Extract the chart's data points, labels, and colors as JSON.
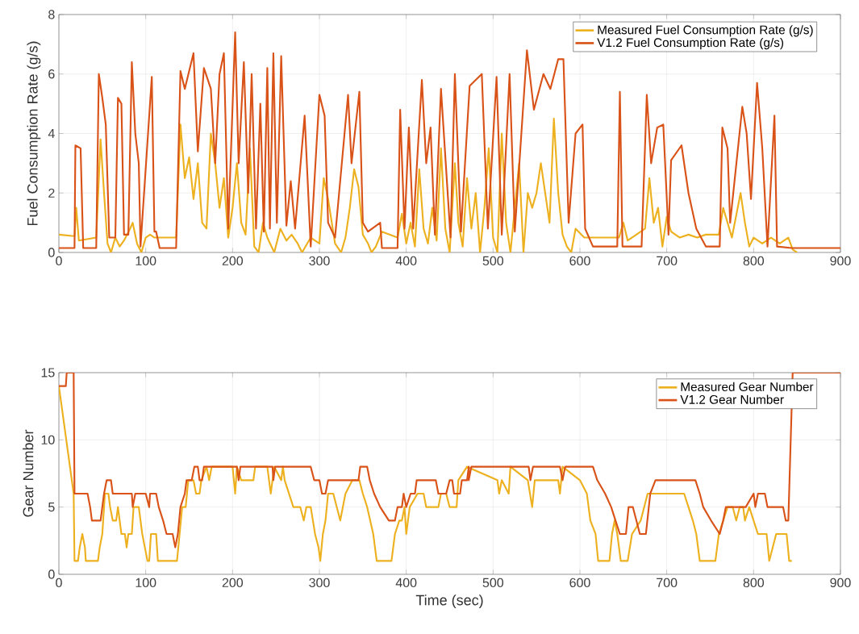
{
  "chart_data": [
    {
      "type": "line",
      "ylabel": "Fuel Consumption Rate (g/s)",
      "xlim": [
        0,
        900
      ],
      "xticks": [
        0,
        100,
        200,
        300,
        400,
        500,
        600,
        700,
        800,
        900
      ],
      "ylim": [
        0,
        8
      ],
      "yticks": [
        0,
        2,
        4,
        6,
        8
      ],
      "grid": true,
      "legend": "top right",
      "series": [
        {
          "name": "Measured Fuel Consumption Rate (g/s)",
          "color": "#edb120",
          "x": [
            0,
            18,
            20,
            23,
            43,
            48,
            52,
            56,
            60,
            65,
            70,
            75,
            82,
            85,
            90,
            95,
            100,
            105,
            110,
            135,
            140,
            145,
            150,
            155,
            160,
            165,
            170,
            175,
            180,
            185,
            190,
            195,
            200,
            205,
            210,
            215,
            220,
            225,
            230,
            235,
            240,
            248,
            255,
            262,
            268,
            275,
            280,
            290,
            300,
            305,
            310,
            318,
            325,
            330,
            335,
            340,
            345,
            350,
            356,
            360,
            365,
            372,
            390,
            395,
            400,
            405,
            410,
            415,
            420,
            425,
            430,
            435,
            440,
            445,
            450,
            456,
            460,
            465,
            470,
            475,
            480,
            485,
            490,
            495,
            500,
            505,
            510,
            515,
            520,
            525,
            530,
            535,
            540,
            545,
            550,
            555,
            560,
            565,
            570,
            575,
            580,
            585,
            590,
            595,
            605,
            645,
            650,
            655,
            665,
            675,
            680,
            685,
            690,
            695,
            700,
            705,
            715,
            725,
            735,
            745,
            760,
            765,
            770,
            775,
            785,
            790,
            795,
            800,
            810,
            820,
            830,
            840,
            845,
            850
          ],
          "values": [
            0.6,
            0.55,
            1.5,
            0.4,
            0.5,
            3.8,
            2.0,
            0.3,
            0.0,
            0.5,
            0.2,
            0.4,
            0.8,
            1.0,
            0.3,
            0.0,
            0.5,
            0.6,
            0.5,
            0.5,
            4.3,
            2.5,
            3.2,
            1.8,
            3.0,
            1.0,
            0.8,
            4.0,
            3.0,
            1.5,
            2.5,
            0.5,
            1.5,
            3.0,
            1.0,
            0.6,
            3.5,
            0.2,
            0.0,
            1.0,
            0.5,
            0.0,
            0.8,
            0.4,
            0.6,
            0.3,
            0.0,
            0.5,
            0.3,
            2.5,
            1.8,
            0.3,
            0.0,
            0.5,
            1.5,
            2.8,
            2.2,
            0.6,
            0.3,
            0.0,
            0.2,
            0.7,
            0.5,
            1.3,
            0.3,
            1.0,
            0.2,
            2.8,
            0.8,
            0.3,
            1.5,
            0.4,
            3.5,
            0.8,
            0.0,
            3.0,
            1.0,
            0.2,
            2.5,
            0.8,
            2.0,
            0.0,
            1.5,
            3.5,
            0.5,
            0.0,
            4.0,
            1.0,
            0.0,
            1.5,
            3.0,
            0.0,
            2.0,
            1.5,
            2.0,
            3.0,
            2.0,
            1.0,
            4.5,
            2.0,
            0.6,
            0.2,
            0.0,
            0.8,
            0.5,
            0.5,
            1.0,
            0.4,
            0.6,
            0.8,
            2.5,
            1.0,
            1.5,
            0.2,
            1.2,
            0.7,
            0.5,
            0.6,
            0.5,
            0.6,
            0.6,
            1.5,
            1.0,
            0.5,
            2.0,
            1.0,
            0.2,
            0.5,
            0.3,
            0.5,
            0.3,
            0.5,
            0.1,
            0.0
          ]
        },
        {
          "name": "V1.2 Fuel Consumption Rate (g/s)",
          "color": "#d95319",
          "x": [
            0,
            18,
            19,
            25,
            28,
            43,
            46,
            50,
            54,
            58,
            65,
            68,
            72,
            75,
            80,
            84,
            88,
            92,
            94,
            107,
            110,
            112,
            116,
            135,
            140,
            145,
            155,
            160,
            167,
            175,
            180,
            185,
            190,
            195,
            203,
            207,
            213,
            218,
            222,
            227,
            232,
            236,
            240,
            243,
            247,
            251,
            256,
            262,
            267,
            272,
            283,
            290,
            300,
            306,
            310,
            318,
            333,
            337,
            346,
            350,
            356,
            370,
            372,
            390,
            393,
            398,
            403,
            408,
            418,
            423,
            428,
            433,
            440,
            451,
            456,
            463,
            473,
            487,
            494,
            504,
            510,
            519,
            525,
            539,
            547,
            558,
            566,
            575,
            581,
            587,
            595,
            603,
            606,
            615,
            643,
            646,
            649,
            671,
            677,
            682,
            689,
            696,
            702,
            705,
            717,
            725,
            734,
            745,
            761,
            764,
            770,
            773,
            787,
            792,
            797,
            804,
            810,
            816,
            824,
            827,
            844,
            900
          ],
          "values": [
            0.15,
            0.15,
            3.6,
            3.5,
            0.15,
            0.15,
            6.0,
            5.2,
            4.3,
            0.5,
            0.5,
            5.2,
            5.0,
            0.6,
            0.6,
            6.4,
            4.0,
            3.0,
            0.2,
            5.9,
            0.7,
            0.7,
            0.15,
            0.15,
            6.1,
            5.5,
            6.7,
            3.4,
            6.2,
            5.5,
            3.0,
            6.0,
            6.7,
            0.8,
            7.4,
            3.0,
            6.4,
            2.0,
            6.0,
            0.8,
            5.0,
            0.7,
            6.2,
            0.8,
            6.7,
            1.0,
            6.6,
            0.9,
            2.4,
            0.8,
            4.6,
            0.2,
            5.3,
            4.6,
            1.0,
            0.5,
            5.3,
            3.0,
            5.4,
            1.0,
            0.7,
            1.0,
            0.15,
            0.15,
            4.8,
            0.8,
            4.2,
            0.8,
            5.8,
            3.0,
            4.2,
            0.6,
            5.5,
            0.5,
            6.0,
            0.7,
            5.6,
            6.0,
            0.8,
            5.9,
            0.6,
            6.0,
            0.7,
            6.8,
            4.8,
            6.0,
            5.5,
            6.5,
            6.5,
            1.0,
            4.0,
            4.3,
            0.8,
            0.2,
            0.2,
            5.4,
            0.2,
            0.2,
            5.3,
            3.0,
            4.2,
            4.3,
            0.6,
            3.1,
            3.6,
            2.0,
            0.8,
            0.2,
            0.2,
            4.2,
            3.5,
            1.0,
            4.9,
            4.0,
            1.8,
            5.7,
            3.5,
            0.2,
            4.6,
            0.2,
            0.15,
            0.15
          ]
        }
      ]
    },
    {
      "type": "line",
      "xlabel": "Time (sec)",
      "ylabel": "Gear Number",
      "xlim": [
        0,
        900
      ],
      "xticks": [
        0,
        100,
        200,
        300,
        400,
        500,
        600,
        700,
        800,
        900
      ],
      "ylim": [
        0,
        15
      ],
      "yticks": [
        0,
        5,
        10,
        15
      ],
      "grid": true,
      "legend": "top right",
      "series": [
        {
          "name": "Measured Gear Number",
          "color": "#edb120",
          "x": [
            0,
            17,
            18,
            22,
            24,
            27,
            30,
            31,
            45,
            47,
            50,
            51,
            53,
            57,
            59,
            62,
            66,
            68,
            70,
            72,
            76,
            78,
            80,
            84,
            86,
            92,
            96,
            99,
            102,
            104,
            106,
            112,
            114,
            136,
            139,
            142,
            146,
            149,
            155,
            158,
            162,
            164,
            170,
            173,
            176,
            200,
            203,
            205,
            210,
            224,
            226,
            240,
            244,
            248,
            256,
            258,
            260,
            265,
            270,
            278,
            282,
            285,
            290,
            295,
            299,
            301,
            304,
            307,
            310,
            316,
            320,
            324,
            327,
            330,
            338,
            346,
            350,
            355,
            362,
            366,
            383,
            387,
            392,
            395,
            398,
            400,
            404,
            413,
            420,
            423,
            437,
            440,
            446,
            450,
            458,
            460,
            470,
            505,
            507,
            510,
            518,
            520,
            540,
            545,
            548,
            575,
            577,
            580,
            600,
            608,
            612,
            618,
            621,
            634,
            637,
            640,
            643,
            647,
            655,
            660,
            670,
            678,
            720,
            725,
            730,
            734,
            738,
            756,
            760,
            765,
            770,
            776,
            780,
            784,
            788,
            790,
            795,
            800,
            805,
            815,
            818,
            822,
            826,
            838,
            841,
            844
          ],
          "values": [
            14,
            6,
            1,
            1,
            2,
            3,
            2,
            1,
            1,
            2,
            3,
            4,
            6,
            6,
            5,
            4,
            4,
            5,
            4,
            3,
            3,
            2,
            3,
            3,
            5,
            5,
            3,
            2,
            1,
            1,
            3,
            3,
            1,
            1,
            3,
            5,
            5,
            7,
            7,
            6,
            6,
            7,
            8,
            7,
            8,
            8,
            6,
            8,
            7,
            7,
            8,
            8,
            6,
            8,
            7,
            8,
            7,
            6,
            5,
            5,
            4,
            5,
            5,
            3,
            2,
            1,
            3,
            4,
            6,
            6,
            5,
            4,
            5,
            6,
            7,
            7,
            6,
            5,
            3,
            1,
            1,
            3,
            4,
            4,
            5,
            3,
            5,
            6,
            6,
            5,
            5,
            6,
            6,
            5,
            5,
            7,
            8,
            7,
            6,
            7,
            6,
            8,
            7,
            5,
            7,
            7,
            6,
            8,
            7,
            6,
            4,
            3,
            1,
            1,
            3,
            4,
            3,
            1,
            1,
            3,
            4,
            6,
            6,
            5,
            4,
            3,
            1,
            1,
            3,
            4,
            5,
            5,
            4,
            5,
            5,
            4,
            5,
            4,
            3,
            3,
            1,
            2,
            3,
            3,
            1,
            1
          ]
        },
        {
          "name": "V1.2 Gear Number",
          "color": "#d95319",
          "x": [
            0,
            8,
            9,
            17,
            18,
            33,
            36,
            38,
            48,
            50,
            52,
            55,
            60,
            62,
            84,
            85,
            88,
            100,
            104,
            105,
            112,
            115,
            120,
            124,
            131,
            134,
            137,
            140,
            145,
            147,
            153,
            156,
            160,
            162,
            165,
            167,
            205,
            207,
            209,
            246,
            247,
            249,
            290,
            294,
            300,
            303,
            307,
            310,
            345,
            347,
            355,
            358,
            363,
            370,
            380,
            387,
            390,
            395,
            397,
            400,
            405,
            410,
            412,
            434,
            437,
            446,
            450,
            453,
            455,
            462,
            464,
            470,
            472,
            472,
            475,
            541,
            543,
            546,
            577,
            580,
            583,
            615,
            620,
            629,
            636,
            641,
            646,
            653,
            656,
            661,
            665,
            669,
            676,
            681,
            687,
            733,
            738,
            742,
            751,
            761,
            765,
            768,
            791,
            800,
            802,
            805,
            813,
            816,
            834,
            837,
            840,
            845,
            900
          ],
          "values": [
            14,
            14,
            15,
            15,
            6,
            6,
            5,
            4,
            4,
            5,
            6,
            7,
            7,
            6,
            6,
            5,
            6,
            6,
            5,
            6,
            6,
            5,
            4,
            3,
            3,
            2,
            3,
            5,
            6,
            7,
            7,
            8,
            8,
            7,
            7,
            8,
            8,
            7,
            8,
            8,
            7,
            8,
            8,
            7,
            7,
            6,
            6,
            7,
            7,
            8,
            8,
            7,
            6,
            5,
            4,
            4,
            5,
            5,
            6,
            5,
            6,
            6,
            7,
            7,
            6,
            6,
            7,
            7,
            6,
            6,
            7,
            7,
            8,
            7,
            8,
            8,
            7,
            8,
            8,
            7,
            8,
            8,
            7,
            6,
            5,
            4,
            3,
            3,
            5,
            5,
            4,
            3,
            3,
            6,
            7,
            7,
            6,
            5,
            4,
            3,
            4,
            5,
            5,
            6,
            5,
            6,
            6,
            5,
            5,
            4,
            4,
            15,
            15
          ]
        }
      ]
    }
  ]
}
